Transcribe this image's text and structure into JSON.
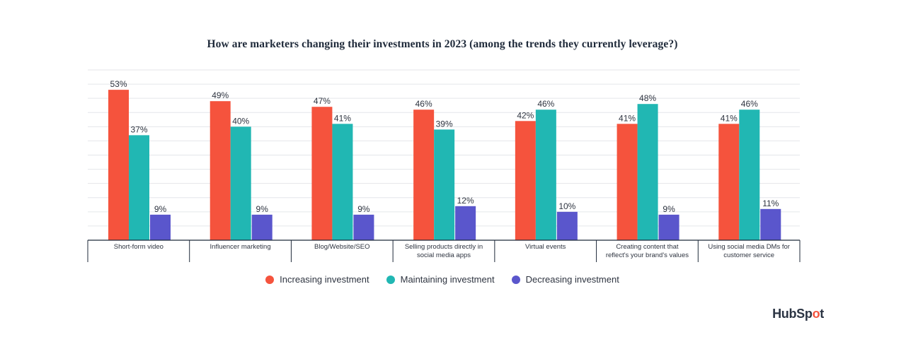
{
  "chart_data": {
    "type": "bar",
    "title": "How are marketers changing their investments in 2023 (among the trends they currently leverage?)",
    "categories": [
      "Short-form video",
      "Influencer marketing",
      "Blog/Website/SEO",
      "Selling products directly in social media apps",
      "Virtual events",
      "Creating content that reflect's your brand's values",
      "Using social media DMs for customer service"
    ],
    "category_lines": [
      [
        "Short-form video"
      ],
      [
        "Influencer marketing"
      ],
      [
        "Blog/Website/SEO"
      ],
      [
        "Selling products directly in",
        "social media apps"
      ],
      [
        "Virtual events"
      ],
      [
        "Creating content that",
        "reflect's your brand's values"
      ],
      [
        "Using social media DMs for",
        "customer service"
      ]
    ],
    "series": [
      {
        "name": "Increasing investment",
        "color": "#f5533d",
        "values": [
          53,
          49,
          47,
          46,
          42,
          41,
          41
        ]
      },
      {
        "name": "Maintaining investment",
        "color": "#21b7b3",
        "values": [
          37,
          40,
          41,
          39,
          46,
          48,
          46
        ]
      },
      {
        "name": "Decreasing investment",
        "color": "#5a56cc",
        "values": [
          9,
          9,
          9,
          12,
          10,
          9,
          11
        ]
      }
    ],
    "value_suffix": "%",
    "ylim": [
      0,
      60
    ],
    "grid": true,
    "legend_position": "bottom"
  },
  "logo": {
    "text_before": "HubSp",
    "text_o": "o",
    "text_after": "t"
  }
}
